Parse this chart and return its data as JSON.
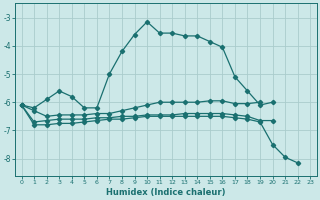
{
  "title": "",
  "xlabel": "Humidex (Indice chaleur)",
  "background_color": "#cce8e8",
  "grid_color": "#aacccc",
  "line_color": "#1a7070",
  "xlim": [
    -0.5,
    23.5
  ],
  "ylim": [
    -8.6,
    -2.5
  ],
  "yticks": [
    -8,
    -7,
    -6,
    -5,
    -4,
    -3
  ],
  "xticks": [
    0,
    1,
    2,
    3,
    4,
    5,
    6,
    7,
    8,
    9,
    10,
    11,
    12,
    13,
    14,
    15,
    16,
    17,
    18,
    19,
    20,
    21,
    22,
    23
  ],
  "series": [
    {
      "x": [
        0,
        1,
        2,
        3,
        4,
        5,
        6,
        7,
        8,
        9,
        10,
        11,
        12,
        13,
        14,
        15,
        16,
        17,
        18,
        19,
        20
      ],
      "y": [
        -6.1,
        -6.2,
        -5.9,
        -5.6,
        -5.8,
        -6.2,
        -6.2,
        -5.0,
        -4.2,
        -3.6,
        -3.15,
        -3.55,
        -3.55,
        -3.65,
        -3.65,
        -3.85,
        -4.05,
        -5.1,
        -5.6,
        -6.1,
        -6.0
      ]
    },
    {
      "x": [
        0,
        1,
        2,
        3,
        4,
        5,
        6,
        7,
        8,
        9,
        10,
        11,
        12,
        13,
        14,
        15,
        16,
        17,
        18,
        19
      ],
      "y": [
        -6.1,
        -6.3,
        -6.5,
        -6.45,
        -6.45,
        -6.45,
        -6.4,
        -6.4,
        -6.3,
        -6.2,
        -6.1,
        -6.0,
        -6.0,
        -6.0,
        -6.0,
        -5.95,
        -5.95,
        -6.05,
        -6.05,
        -6.0
      ]
    },
    {
      "x": [
        0,
        1,
        2,
        3,
        4,
        5,
        6,
        7,
        8,
        9,
        10,
        11,
        12,
        13,
        14,
        15,
        16,
        17,
        18,
        19,
        20
      ],
      "y": [
        -6.1,
        -6.7,
        -6.65,
        -6.6,
        -6.6,
        -6.6,
        -6.55,
        -6.55,
        -6.5,
        -6.5,
        -6.45,
        -6.45,
        -6.45,
        -6.4,
        -6.4,
        -6.4,
        -6.4,
        -6.45,
        -6.5,
        -6.65,
        -6.65
      ]
    },
    {
      "x": [
        0,
        1,
        2,
        3,
        4,
        5,
        6,
        7,
        8,
        9,
        10,
        11,
        12,
        13,
        14,
        15,
        16,
        17,
        18,
        19,
        20,
        21,
        22
      ],
      "y": [
        -6.1,
        -6.8,
        -6.8,
        -6.75,
        -6.75,
        -6.7,
        -6.65,
        -6.6,
        -6.6,
        -6.55,
        -6.5,
        -6.5,
        -6.5,
        -6.5,
        -6.5,
        -6.5,
        -6.5,
        -6.55,
        -6.6,
        -6.7,
        -7.5,
        -7.95,
        -8.15
      ]
    }
  ]
}
